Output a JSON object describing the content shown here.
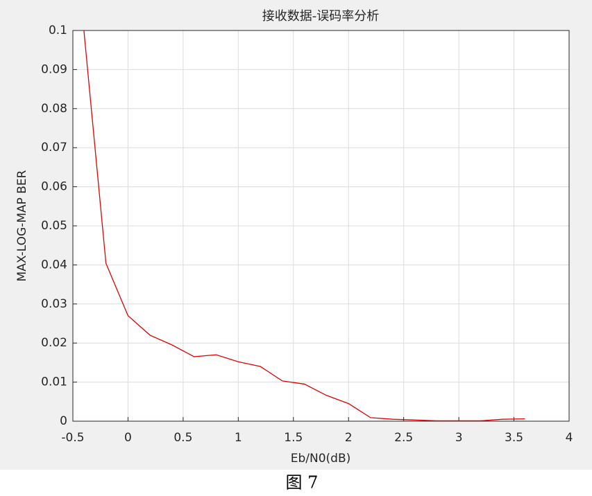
{
  "chart_data": {
    "type": "line",
    "title": "接收数据-误码率分析",
    "x_label": "Eb/N0(dB)",
    "y_label": "MAX-LOG-MAP BER",
    "x": [
      -0.4,
      -0.2,
      0,
      0.2,
      0.4,
      0.6,
      0.8,
      1.0,
      1.2,
      1.4,
      1.6,
      1.8,
      2.0,
      2.2,
      2.4,
      2.6,
      2.8,
      3.0,
      3.2,
      3.4,
      3.6
    ],
    "series": [
      {
        "color": "#e00000",
        "values": [
          0.1,
          0.0404,
          0.027,
          0.022,
          0.0195,
          0.0165,
          0.017,
          0.0152,
          0.014,
          0.0103,
          0.0095,
          0.0066,
          0.0045,
          0.0009,
          0.0005,
          0.0003,
          0.0001,
          0.0001,
          0.0001,
          0.0005,
          0.0006
        ]
      }
    ],
    "xlim": [
      -0.5,
      4
    ],
    "xticks": [
      -0.5,
      0,
      0.5,
      1,
      1.5,
      2,
      2.5,
      3,
      3.5,
      4
    ],
    "ylim": [
      0,
      0.1
    ],
    "yticks": [
      0,
      0.01,
      0.02,
      0.03,
      0.04,
      0.05,
      0.06,
      0.07,
      0.08,
      0.09,
      0.1
    ],
    "grid": true
  },
  "caption": "图 7"
}
